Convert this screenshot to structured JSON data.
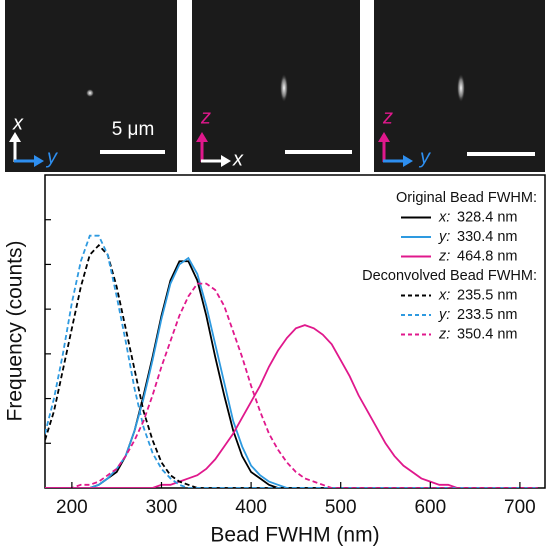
{
  "images": [
    {
      "vertical": "x",
      "horizontal": "y",
      "scale": "5 μm"
    },
    {
      "vertical": "z",
      "horizontal": "x"
    },
    {
      "vertical": "z",
      "horizontal": "y"
    }
  ],
  "chart_data": {
    "type": "line",
    "x_label": "Bead FWHM (nm)",
    "y_label": "Frequency (counts)",
    "xlim": [
      170,
      728
    ],
    "xticks": [
      200,
      300,
      400,
      500,
      600,
      700
    ],
    "ylim": [
      0,
      0.98
    ],
    "yticks": [
      0.14,
      0.28,
      0.42,
      0.56,
      0.7,
      0.84
    ],
    "legend_position": "upper right",
    "legend_groups": [
      "Original Bead FWHM:",
      "Deconvolved Bead FWHM:"
    ],
    "x": [
      170,
      180,
      190,
      200,
      210,
      220,
      230,
      240,
      250,
      260,
      270,
      280,
      290,
      300,
      310,
      320,
      330,
      340,
      350,
      360,
      370,
      380,
      390,
      400,
      410,
      420,
      430,
      440,
      450,
      460,
      470,
      480,
      490,
      500,
      510,
      520,
      530,
      540,
      550,
      560,
      570,
      580,
      590,
      600,
      610,
      620,
      630,
      640,
      650,
      660,
      670,
      680,
      690,
      700,
      710,
      720
    ],
    "series": [
      {
        "name": "x:",
        "fwhm": "328.4 nm",
        "group": 0,
        "dashed": false,
        "color": "#000000",
        "values": [
          0,
          0,
          0,
          0,
          0,
          0,
          0.01,
          0.03,
          0.05,
          0.1,
          0.18,
          0.29,
          0.41,
          0.54,
          0.65,
          0.71,
          0.71,
          0.65,
          0.54,
          0.41,
          0.29,
          0.18,
          0.1,
          0.05,
          0.03,
          0.01,
          0,
          0,
          0,
          0,
          0,
          0,
          0,
          0,
          0,
          0,
          0,
          0,
          0,
          0,
          0,
          0,
          0,
          0,
          0,
          0,
          0,
          0,
          0,
          0,
          0,
          0,
          0,
          0,
          0,
          0
        ]
      },
      {
        "name": "y:",
        "fwhm": "330.4 nm",
        "group": 0,
        "dashed": false,
        "color": "#2e9ae0",
        "values": [
          0,
          0,
          0,
          0,
          0,
          0,
          0.01,
          0.03,
          0.06,
          0.1,
          0.18,
          0.28,
          0.4,
          0.53,
          0.64,
          0.7,
          0.72,
          0.67,
          0.57,
          0.45,
          0.33,
          0.21,
          0.13,
          0.07,
          0.04,
          0.02,
          0.01,
          0,
          0,
          0,
          0,
          0,
          0,
          0,
          0,
          0,
          0,
          0,
          0,
          0,
          0,
          0,
          0,
          0,
          0,
          0,
          0,
          0,
          0,
          0,
          0,
          0,
          0,
          0,
          0,
          0
        ]
      },
      {
        "name": "z:",
        "fwhm": "464.8 nm",
        "group": 0,
        "dashed": false,
        "color": "#e0188c",
        "values": [
          0,
          0,
          0,
          0,
          0,
          0,
          0,
          0,
          0,
          0,
          0,
          0,
          0,
          0.01,
          0.01,
          0.02,
          0.03,
          0.04,
          0.06,
          0.09,
          0.13,
          0.17,
          0.22,
          0.27,
          0.32,
          0.38,
          0.43,
          0.47,
          0.5,
          0.51,
          0.5,
          0.48,
          0.45,
          0.4,
          0.35,
          0.29,
          0.24,
          0.19,
          0.14,
          0.1,
          0.07,
          0.05,
          0.03,
          0.02,
          0.01,
          0.01,
          0,
          0,
          0,
          0,
          0,
          0,
          0,
          0,
          0,
          0
        ]
      },
      {
        "name": "x:",
        "fwhm": "235.5 nm",
        "group": 1,
        "dashed": true,
        "color": "#000000",
        "values": [
          0.15,
          0.24,
          0.37,
          0.5,
          0.63,
          0.73,
          0.76,
          0.73,
          0.63,
          0.5,
          0.37,
          0.24,
          0.15,
          0.08,
          0.04,
          0.02,
          0.01,
          0,
          0,
          0,
          0,
          0,
          0,
          0,
          0,
          0,
          0,
          0,
          0,
          0,
          0,
          0,
          0,
          0,
          0,
          0,
          0,
          0,
          0,
          0,
          0,
          0,
          0,
          0,
          0,
          0,
          0,
          0,
          0,
          0,
          0,
          0,
          0,
          0,
          0,
          0
        ]
      },
      {
        "name": "y:",
        "fwhm": "233.5 nm",
        "group": 1,
        "dashed": true,
        "color": "#2e9ae0",
        "values": [
          0.17,
          0.28,
          0.42,
          0.58,
          0.71,
          0.79,
          0.79,
          0.73,
          0.6,
          0.46,
          0.31,
          0.19,
          0.11,
          0.06,
          0.03,
          0.01,
          0,
          0,
          0,
          0,
          0,
          0,
          0,
          0,
          0,
          0,
          0,
          0,
          0,
          0,
          0,
          0,
          0,
          0,
          0,
          0,
          0,
          0,
          0,
          0,
          0,
          0,
          0,
          0,
          0,
          0,
          0,
          0,
          0,
          0,
          0,
          0,
          0,
          0,
          0,
          0
        ]
      },
      {
        "name": "z:",
        "fwhm": "350.4 nm",
        "group": 1,
        "dashed": true,
        "color": "#e0188c",
        "values": [
          0,
          0,
          0,
          0,
          0.01,
          0.01,
          0.02,
          0.04,
          0.06,
          0.1,
          0.15,
          0.21,
          0.29,
          0.38,
          0.46,
          0.54,
          0.6,
          0.64,
          0.64,
          0.62,
          0.57,
          0.49,
          0.41,
          0.32,
          0.24,
          0.17,
          0.12,
          0.08,
          0.05,
          0.03,
          0.02,
          0.01,
          0,
          0,
          0,
          0,
          0,
          0,
          0,
          0,
          0,
          0,
          0,
          0,
          0,
          0,
          0,
          0,
          0,
          0,
          0,
          0,
          0,
          0,
          0,
          0
        ]
      }
    ]
  }
}
